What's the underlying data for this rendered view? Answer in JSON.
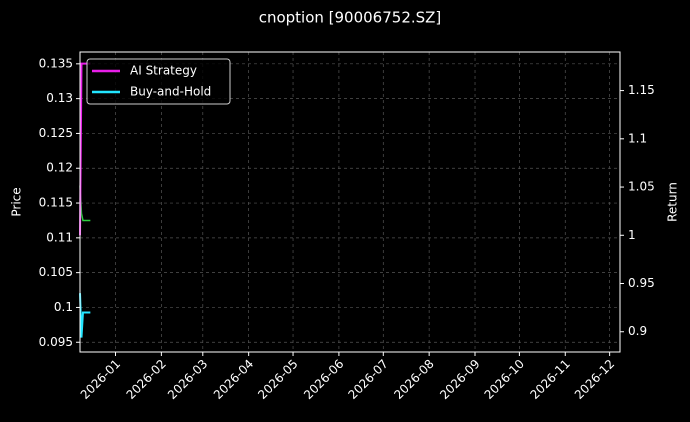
{
  "chart_data": {
    "type": "line",
    "title": "cnoption [90006752.SZ]",
    "ylabel": "Price",
    "y2label": "Return",
    "x": [
      "2025-12-08",
      "2025-12-09",
      "2025-12-10",
      "2025-12-15"
    ],
    "xlim": [
      "2025-12-08",
      "2026-12-08"
    ],
    "xticks": [
      "2026-01",
      "2026-02",
      "2026-03",
      "2026-04",
      "2026-05",
      "2026-06",
      "2026-07",
      "2026-08",
      "2026-09",
      "2026-10",
      "2026-11",
      "2026-12"
    ],
    "ylim": [
      0.0936,
      0.1367
    ],
    "yticks": [
      0.095,
      0.1,
      0.105,
      0.11,
      0.115,
      0.12,
      0.125,
      0.13,
      0.135
    ],
    "y2lim": [
      0.879,
      1.19
    ],
    "y2ticks": [
      0.9,
      0.95,
      1.0,
      1.05,
      1.1,
      1.15
    ],
    "grid": true,
    "legend": "upper left",
    "price": {
      "color": "#2ecc40",
      "values": [
        0.1175,
        0.1135,
        0.1125,
        0.1125
      ]
    },
    "series": [
      {
        "name": "AI Strategy",
        "color": "#e81ee8",
        "axis": "y2",
        "values": [
          1.0,
          1.178,
          1.178,
          1.178
        ]
      },
      {
        "name": "Buy-and-Hold",
        "color": "#22e5ff",
        "axis": "y2",
        "values": [
          0.94,
          0.894,
          0.92,
          0.92
        ]
      }
    ]
  }
}
